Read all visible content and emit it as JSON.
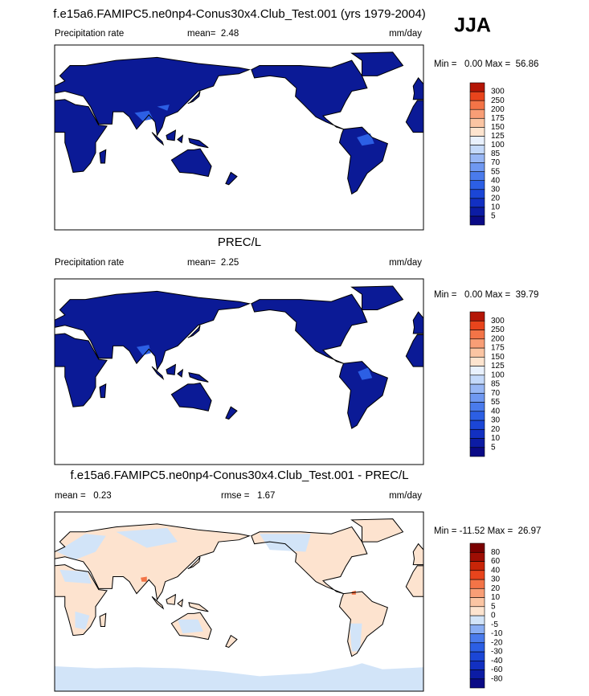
{
  "season": "JJA",
  "panels": [
    {
      "title": "f.e15a6.FAMIPC5.ne0np4-Conus30x4.Club_Test.001 (yrs 1979-2004)",
      "left": "Precipitation rate",
      "center": "mean=  2.48",
      "right": "mm/day",
      "range": "Min =   0.00 Max =  56.86",
      "colorbar": {
        "labels": [
          5,
          10,
          20,
          30,
          40,
          55,
          70,
          85,
          100,
          125,
          150,
          175,
          200,
          250,
          300
        ],
        "colors": [
          "#0a0a86",
          "#0c1ca4",
          "#1230c2",
          "#1b46d6",
          "#2c5fe4",
          "#4a7bec",
          "#6f98f1",
          "#98b7f5",
          "#c4d9fa",
          "#e9f1fd",
          "#fde4cf",
          "#fbc5a3",
          "#f89e76",
          "#f37447",
          "#e8441c",
          "#b41606"
        ]
      }
    },
    {
      "title": "PREC/L",
      "left": "Precipitation rate",
      "center": "mean=  2.25",
      "right": "mm/day",
      "range": "Min =   0.00 Max =  39.79",
      "colorbar": {
        "labels": [
          5,
          10,
          20,
          30,
          40,
          55,
          70,
          85,
          100,
          125,
          150,
          175,
          200,
          250,
          300
        ],
        "colors": [
          "#0a0a86",
          "#0c1ca4",
          "#1230c2",
          "#1b46d6",
          "#2c5fe4",
          "#4a7bec",
          "#6f98f1",
          "#98b7f5",
          "#c4d9fa",
          "#e9f1fd",
          "#fde4cf",
          "#fbc5a3",
          "#f89e76",
          "#f37447",
          "#e8441c",
          "#b41606"
        ]
      }
    },
    {
      "title": "f.e15a6.FAMIPC5.ne0np4-Conus30x4.Club_Test.001 - PREC/L",
      "left": "mean =   0.23",
      "center": "rmse =   1.67",
      "right": "mm/day",
      "range": "Min = -11.52 Max =  26.97",
      "colorbar": {
        "labels": [
          -80,
          -60,
          -40,
          -30,
          -20,
          -10,
          -5,
          0,
          5,
          10,
          20,
          30,
          40,
          60,
          80
        ],
        "colors": [
          "#0a0a86",
          "#0c1ca4",
          "#1230c2",
          "#1b46d6",
          "#2c5fe4",
          "#4a7bec",
          "#8aaef3",
          "#d2e4f8",
          "#fde4cf",
          "#fbc5a3",
          "#f89e76",
          "#f37447",
          "#e8441c",
          "#c82508",
          "#9e0e04",
          "#7a0000"
        ]
      }
    }
  ]
}
